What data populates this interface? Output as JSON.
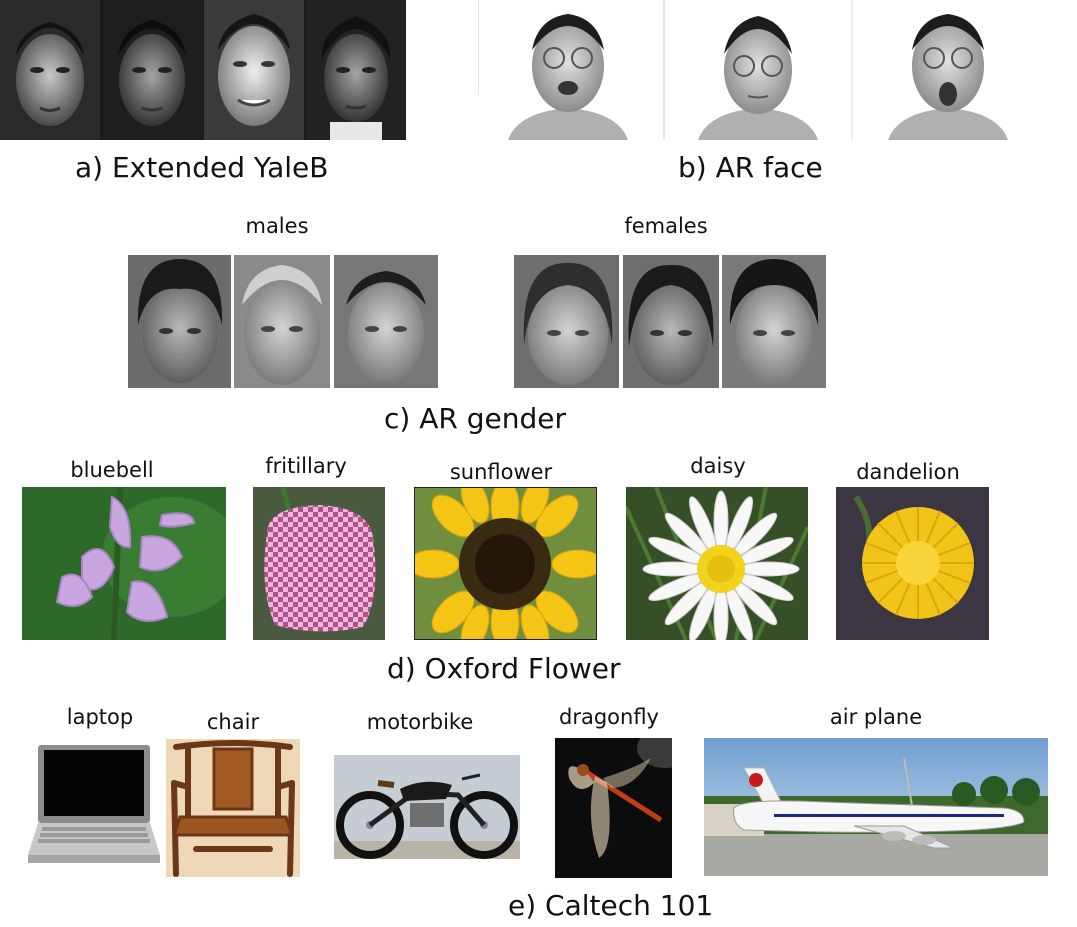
{
  "figure": {
    "panel_a": {
      "caption": "a) Extended YaleB"
    },
    "panel_b": {
      "caption": "b) AR face"
    },
    "panel_c": {
      "caption": "c) AR gender",
      "group_left": "males",
      "group_right": "females"
    },
    "panel_d": {
      "caption": "d) Oxford Flower",
      "labels": [
        "bluebell",
        "fritillary",
        "sunflower",
        "daisy",
        "dandelion"
      ]
    },
    "panel_e": {
      "caption": "e) Caltech 101",
      "labels": [
        "laptop",
        "chair",
        "motorbike",
        "dragonfly",
        "air plane"
      ]
    }
  }
}
